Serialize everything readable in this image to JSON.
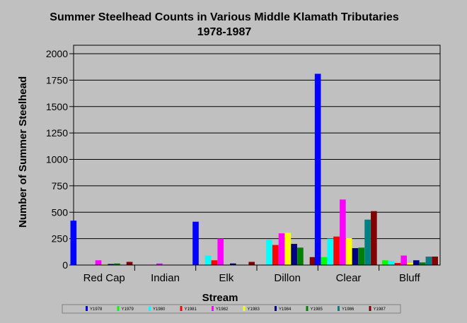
{
  "chart_data": {
    "type": "bar",
    "title": "Summer Steelhead Counts in Various Middle Klamath Tributaries",
    "subtitle": "1978-1987",
    "xlabel": "Stream",
    "ylabel": "Number of Summer Steelhead",
    "ylim": [
      0,
      2000
    ],
    "yticks": [
      "0",
      "250",
      "500",
      "750",
      "1000",
      "1250",
      "1500",
      "1750",
      "2000"
    ],
    "grid": true,
    "legend_position": "bottom",
    "categories": [
      "Red Cap",
      "Indian",
      "Elk",
      "Dillon",
      "Clear",
      "Bluff"
    ],
    "series": [
      {
        "name": "Y1978",
        "color": "#0000ff",
        "values": [
          420,
          0,
          410,
          0,
          1810,
          0
        ]
      },
      {
        "name": "Y1979",
        "color": "#00ff00",
        "values": [
          0,
          0,
          0,
          0,
          75,
          45
        ]
      },
      {
        "name": "Y1980",
        "color": "#00ffff",
        "values": [
          0,
          0,
          90,
          240,
          250,
          40
        ]
      },
      {
        "name": "Y1981",
        "color": "#ff0000",
        "values": [
          0,
          0,
          45,
          190,
          270,
          20
        ]
      },
      {
        "name": "Y1982",
        "color": "#ff00ff",
        "values": [
          45,
          15,
          250,
          300,
          620,
          90
        ]
      },
      {
        "name": "Y1983",
        "color": "#ffff00",
        "values": [
          5,
          0,
          0,
          305,
          255,
          20
        ]
      },
      {
        "name": "Y1984",
        "color": "#000080",
        "values": [
          10,
          0,
          15,
          200,
          160,
          45
        ]
      },
      {
        "name": "Y1985",
        "color": "#008000",
        "values": [
          15,
          0,
          0,
          165,
          165,
          25
        ]
      },
      {
        "name": "Y1986",
        "color": "#008080",
        "values": [
          0,
          0,
          0,
          0,
          430,
          80
        ]
      },
      {
        "name": "Y1987",
        "color": "#800000",
        "values": [
          30,
          0,
          30,
          75,
          510,
          80
        ]
      }
    ]
  }
}
